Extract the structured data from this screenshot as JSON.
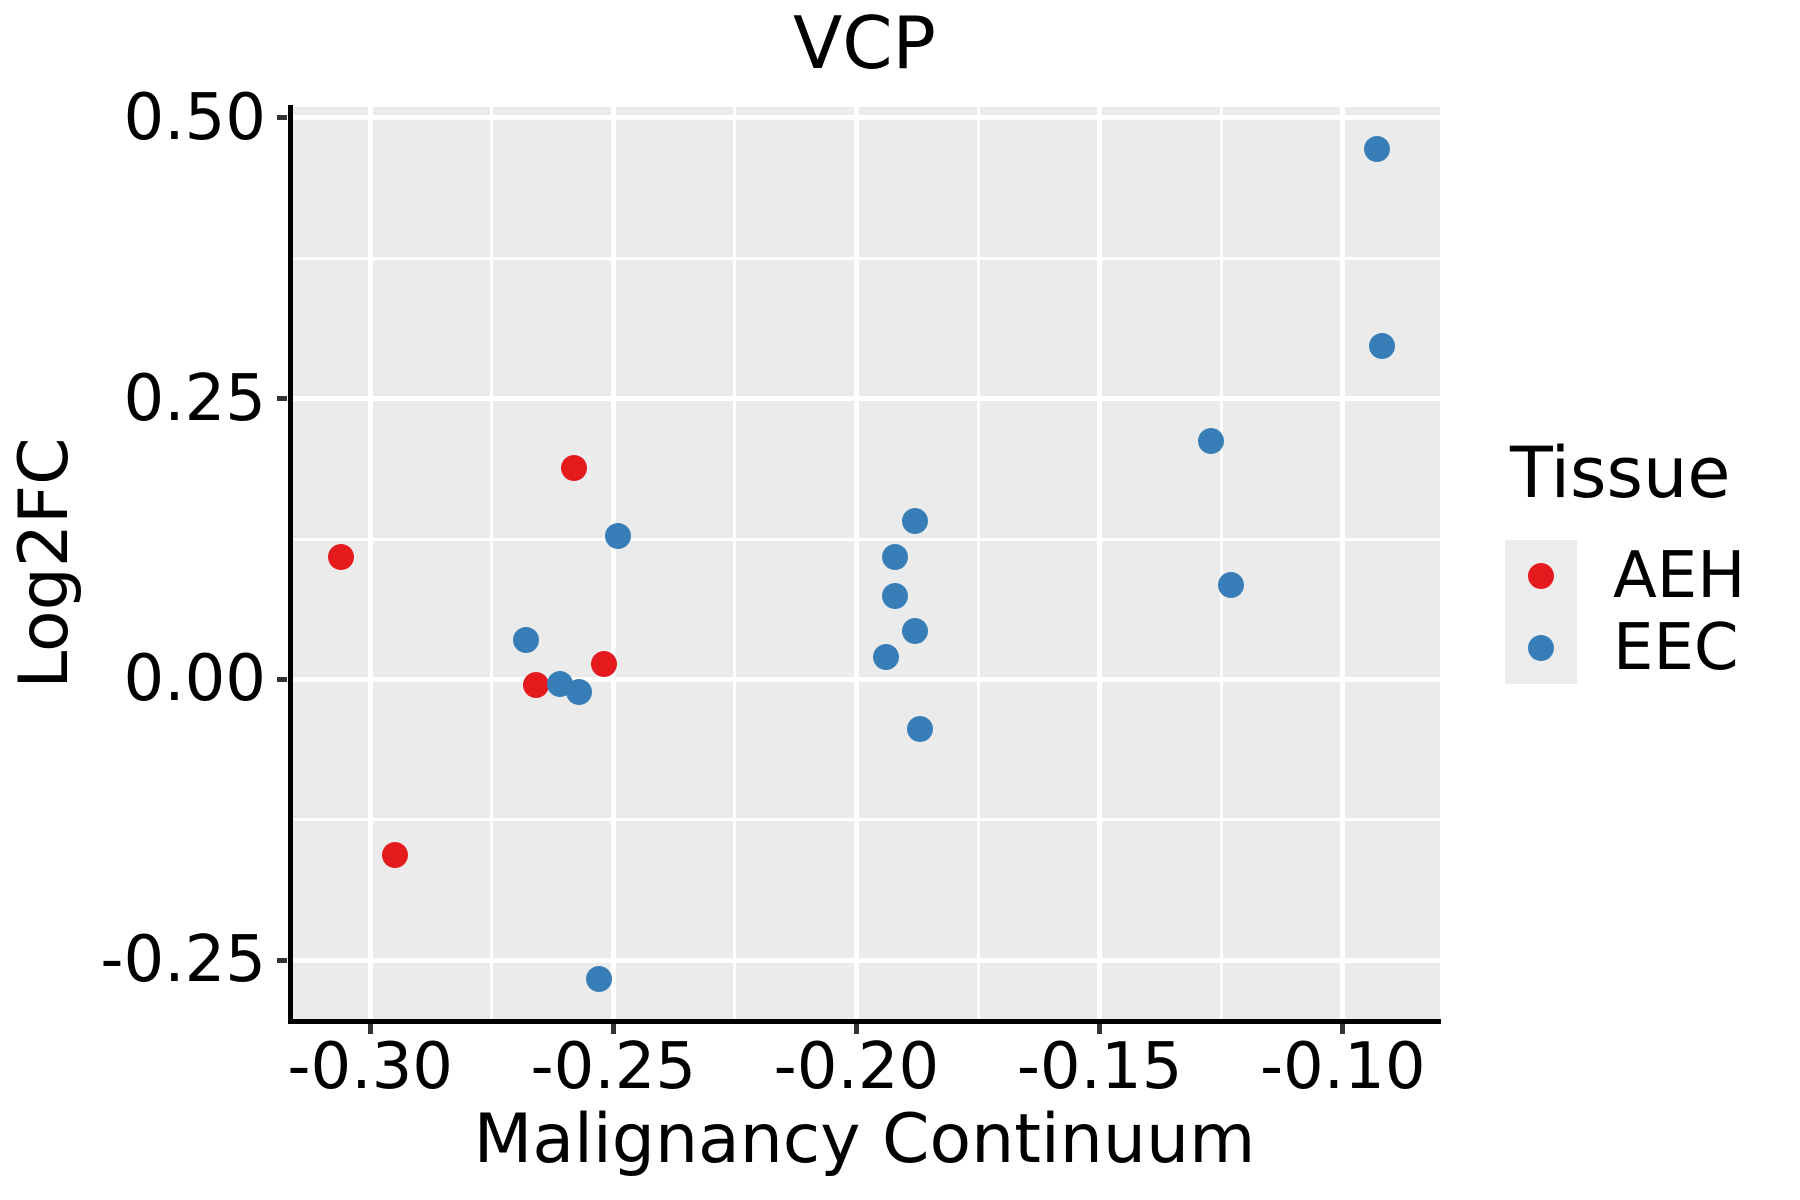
{
  "figure": {
    "title": "VCP",
    "x_axis": {
      "label": "Malignancy Continuum",
      "tick_labels": [
        "-0.30",
        "-0.25",
        "-0.20",
        "-0.15",
        "-0.10"
      ]
    },
    "y_axis": {
      "label": "Log2FC",
      "tick_labels": [
        "0.50",
        "0.25",
        "0.00",
        "-0.25"
      ]
    },
    "legend": {
      "title": "Tissue",
      "items": [
        {
          "label": "AEH",
          "color": "#E41A1C"
        },
        {
          "label": "EEC",
          "color": "#377EB8"
        }
      ]
    }
  },
  "chart_data": {
    "type": "scatter",
    "title": "VCP",
    "xlabel": "Malignancy Continuum",
    "ylabel": "Log2FC",
    "legend_title": "Tissue",
    "legend_position": "right",
    "grid": "on",
    "panel_background": "#EBEBEB",
    "grid_color": "#FFFFFF",
    "xlim": [
      -0.3167,
      -0.08
    ],
    "ylim": [
      -0.3024,
      0.5097
    ],
    "x_ticks": [
      -0.3,
      -0.25,
      -0.2,
      -0.15,
      -0.1
    ],
    "x_tick_labels": [
      "-0.30",
      "-0.25",
      "-0.20",
      "-0.15",
      "-0.10"
    ],
    "x_minor": [
      -0.275,
      -0.225,
      -0.175,
      -0.125
    ],
    "y_ticks": [
      0.5,
      0.25,
      0.0,
      -0.25
    ],
    "y_tick_labels": [
      "0.50",
      "0.25",
      "0.00",
      "-0.25"
    ],
    "y_minor": [
      0.375,
      0.125,
      -0.125
    ],
    "series": [
      {
        "name": "AEH",
        "color": "#E41A1C",
        "points": [
          [
            -0.306,
            0.109
          ],
          [
            -0.295,
            -0.156
          ],
          [
            -0.266,
            -0.005
          ],
          [
            -0.258,
            0.188
          ],
          [
            -0.252,
            0.014
          ]
        ]
      },
      {
        "name": "EEC",
        "color": "#377EB8",
        "points": [
          [
            -0.268,
            0.035
          ],
          [
            -0.261,
            -0.004
          ],
          [
            -0.257,
            -0.011
          ],
          [
            -0.253,
            -0.267
          ],
          [
            -0.249,
            0.128
          ],
          [
            -0.194,
            0.02
          ],
          [
            -0.192,
            0.109
          ],
          [
            -0.192,
            0.074
          ],
          [
            -0.188,
            0.141
          ],
          [
            -0.188,
            0.043
          ],
          [
            -0.187,
            -0.044
          ],
          [
            -0.127,
            0.212
          ],
          [
            -0.123,
            0.084
          ],
          [
            -0.093,
            0.472
          ],
          [
            -0.092,
            0.297
          ]
        ]
      }
    ]
  }
}
